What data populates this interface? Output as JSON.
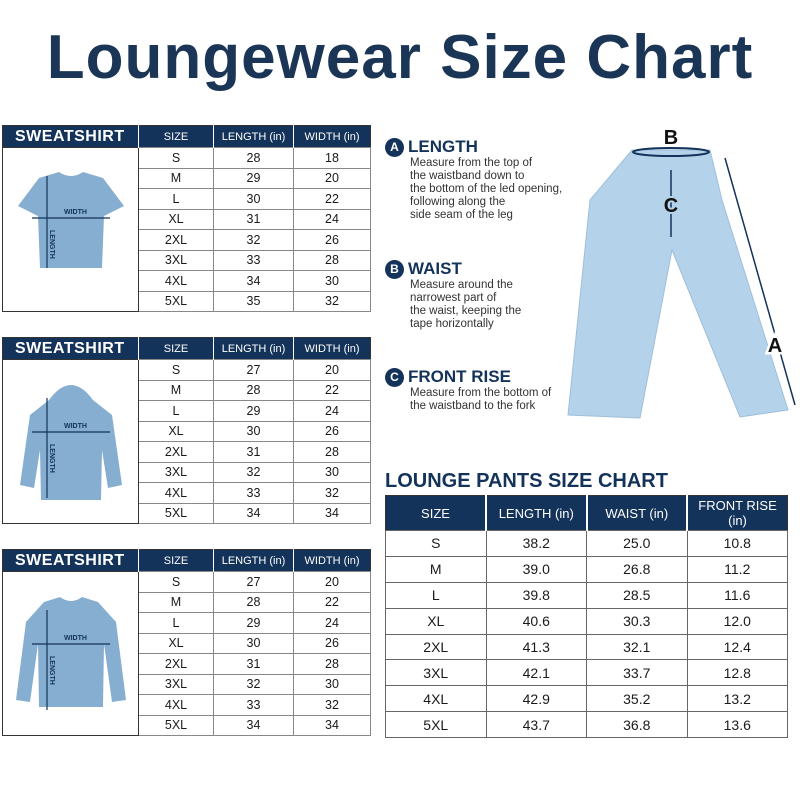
{
  "title": "Loungewear Size Chart",
  "sweatshirt_tables": [
    {
      "brand": "SWEATSHIRT",
      "garment": "t-shirt",
      "headers": [
        "SIZE",
        "LENGTH (in)",
        "WIDTH (in)"
      ],
      "image_labels": {
        "width": "WIDTH",
        "length": "LENGTH"
      },
      "rows": [
        [
          "S",
          "28",
          "18"
        ],
        [
          "M",
          "29",
          "20"
        ],
        [
          "L",
          "30",
          "22"
        ],
        [
          "XL",
          "31",
          "24"
        ],
        [
          "2XL",
          "32",
          "26"
        ],
        [
          "3XL",
          "33",
          "28"
        ],
        [
          "4XL",
          "34",
          "30"
        ],
        [
          "5XL",
          "35",
          "32"
        ]
      ]
    },
    {
      "brand": "SWEATSHIRT",
      "garment": "hoodie",
      "headers": [
        "SIZE",
        "LENGTH (in)",
        "WIDTH (in)"
      ],
      "image_labels": {
        "width": "WIDTH",
        "length": "LENGTH"
      },
      "rows": [
        [
          "S",
          "27",
          "20"
        ],
        [
          "M",
          "28",
          "22"
        ],
        [
          "L",
          "29",
          "24"
        ],
        [
          "XL",
          "30",
          "26"
        ],
        [
          "2XL",
          "31",
          "28"
        ],
        [
          "3XL",
          "32",
          "30"
        ],
        [
          "4XL",
          "33",
          "32"
        ],
        [
          "5XL",
          "34",
          "34"
        ]
      ]
    },
    {
      "brand": "SWEATSHIRT",
      "garment": "crewneck",
      "headers": [
        "SIZE",
        "LENGTH (in)",
        "WIDTH (in)"
      ],
      "image_labels": {
        "width": "WIDTH",
        "length": "LENGTH"
      },
      "rows": [
        [
          "S",
          "27",
          "20"
        ],
        [
          "M",
          "28",
          "22"
        ],
        [
          "L",
          "29",
          "24"
        ],
        [
          "XL",
          "30",
          "26"
        ],
        [
          "2XL",
          "31",
          "28"
        ],
        [
          "3XL",
          "32",
          "30"
        ],
        [
          "4XL",
          "33",
          "32"
        ],
        [
          "5XL",
          "34",
          "34"
        ]
      ]
    }
  ],
  "measurements": [
    {
      "letter": "A",
      "title": "LENGTH",
      "desc": "Measure from the top of\nthe waistband down to\nthe bottom of the led opening,\nfollowing along the\nside seam of the leg"
    },
    {
      "letter": "B",
      "title": "WAIST",
      "desc": "Measure around the\nnarrowest part of\nthe waist, keeping the\ntape horizontally"
    },
    {
      "letter": "C",
      "title": "FRONT RISE",
      "desc": "Measure from the bottom of\nthe waistband to the fork"
    }
  ],
  "pants_labels": {
    "a": "A",
    "b": "B",
    "c": "C"
  },
  "pants_table": {
    "title": "LOUNGE PANTS SIZE CHART",
    "headers": [
      "SIZE",
      "LENGTH (in)",
      "WAIST (in)",
      "FRONT RISE (in)"
    ],
    "rows": [
      [
        "S",
        "38.2",
        "25.0",
        "10.8"
      ],
      [
        "M",
        "39.0",
        "26.8",
        "11.2"
      ],
      [
        "L",
        "39.8",
        "28.5",
        "11.6"
      ],
      [
        "XL",
        "40.6",
        "30.3",
        "12.0"
      ],
      [
        "2XL",
        "41.3",
        "32.1",
        "12.4"
      ],
      [
        "3XL",
        "42.1",
        "33.7",
        "12.8"
      ],
      [
        "4XL",
        "42.9",
        "35.2",
        "13.2"
      ],
      [
        "5XL",
        "43.7",
        "36.8",
        "13.6"
      ]
    ]
  },
  "colors": {
    "navy": "#14335a",
    "garment": "#86aed0",
    "pants": "#b4d2ea"
  }
}
